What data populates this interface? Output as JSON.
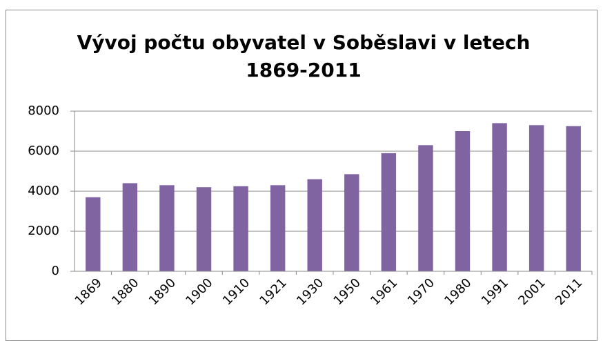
{
  "chart_data": {
    "type": "bar",
    "title": "Vývoj počtu obyvatel v Soběslavi v letech 1869-2011",
    "categories": [
      "1869",
      "1880",
      "1890",
      "1900",
      "1910",
      "1921",
      "1930",
      "1950",
      "1961",
      "1970",
      "1980",
      "1991",
      "2001",
      "2011"
    ],
    "values": [
      3700,
      4400,
      4300,
      4200,
      4250,
      4300,
      4600,
      4850,
      5900,
      6300,
      7000,
      7400,
      7300,
      7250
    ],
    "color": "#8064a2",
    "ylim": [
      0,
      8000
    ],
    "yticks": [
      0,
      2000,
      4000,
      6000,
      8000
    ],
    "grid": true
  }
}
